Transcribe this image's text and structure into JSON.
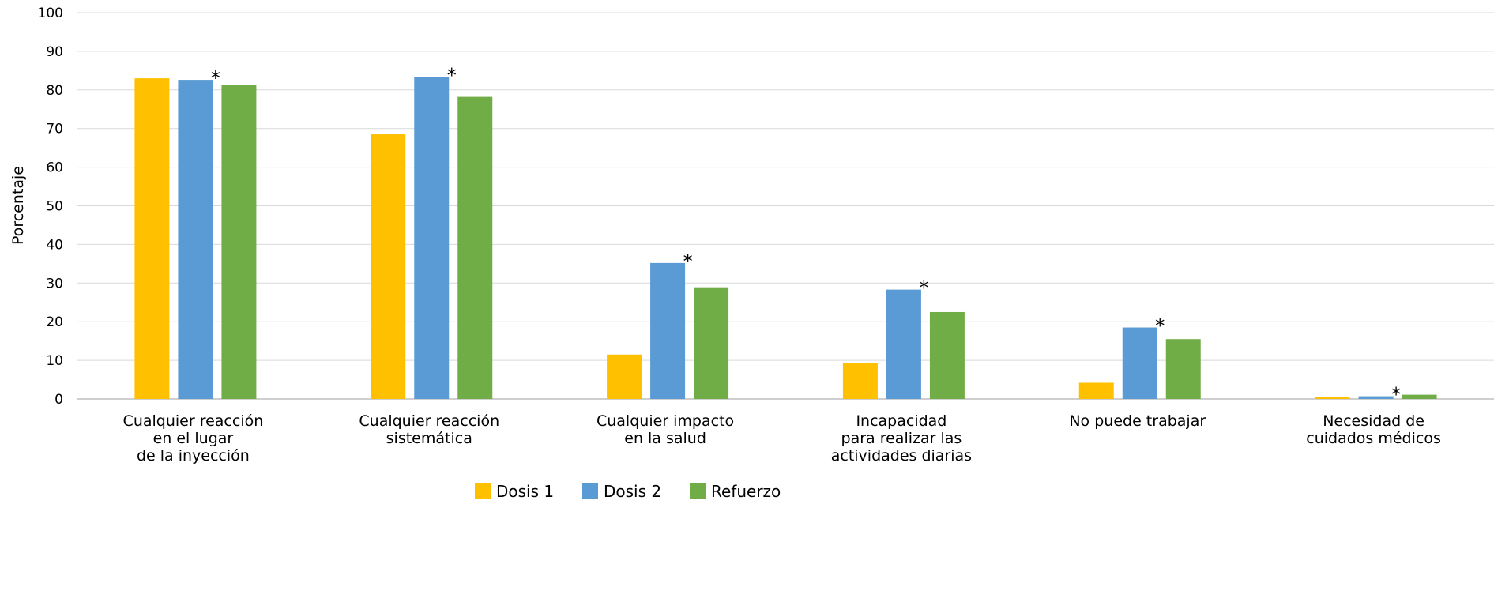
{
  "chart_data": {
    "type": "bar",
    "ylabel": "Porcentaje",
    "ylim": [
      0,
      100
    ],
    "yticks": [
      "0",
      "10",
      "20",
      "30",
      "40",
      "50",
      "60",
      "70",
      "80",
      "90",
      "100"
    ],
    "grid": true,
    "legend_position": "bottom",
    "categories": [
      [
        "Cualquier reacción",
        "en el lugar",
        "de la inyección"
      ],
      [
        "Cualquier reacción",
        "sistemática"
      ],
      [
        "Cualquier impacto",
        "en la salud"
      ],
      [
        "Incapacidad",
        "para realizar las",
        "actividades diarias"
      ],
      [
        "No puede trabajar"
      ],
      [
        "Necesidad de",
        "cuidados médicos"
      ]
    ],
    "series": [
      {
        "name": "Dosis 1",
        "color": "#FFC000",
        "values": [
          83,
          68.5,
          11.5,
          9.3,
          4.2,
          0.6
        ]
      },
      {
        "name": "Dosis 2",
        "color": "#5B9BD5",
        "values": [
          82.6,
          83.3,
          35.2,
          28.3,
          18.5,
          0.7
        ]
      },
      {
        "name": "Refuerzo",
        "color": "#70AD47",
        "values": [
          81.3,
          78.2,
          28.9,
          22.5,
          15.5,
          1.1
        ]
      }
    ],
    "annotations": [
      {
        "text": "*",
        "category": 0,
        "series": 1
      },
      {
        "text": "*",
        "category": 1,
        "series": 1
      },
      {
        "text": "*",
        "category": 2,
        "series": 1
      },
      {
        "text": "*",
        "category": 3,
        "series": 1
      },
      {
        "text": "*",
        "category": 4,
        "series": 1
      },
      {
        "text": "*",
        "category": 5,
        "series": 1
      }
    ]
  }
}
